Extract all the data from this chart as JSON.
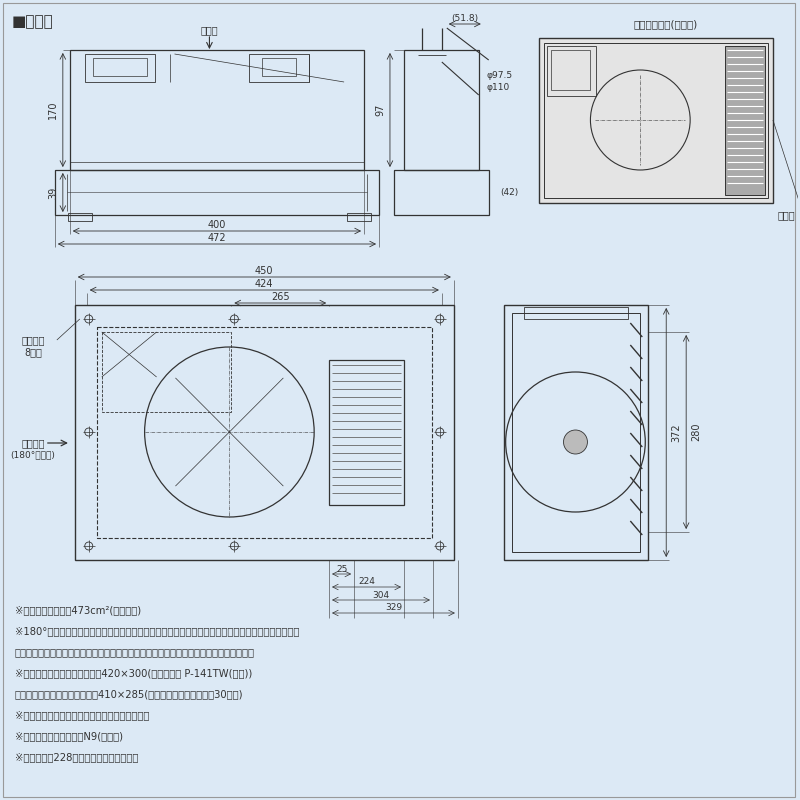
{
  "bg_color": "#dce9f5",
  "line_color": "#333333",
  "title": "■外形図",
  "notes": [
    "※グリル開口面積は473cm²(側面開口)",
    "※180°反転する場合は、吹出グリルの方向を変える必要があります。また、電源端子台位置が変わる",
    "　ため、点検口からの電源接続が困難な場合、電源接続の後に本体を据付けてください。",
    "※天井埋込寸法　天吹据付時　420×300(天吹補助枝 P-141TW(別売))",
    "　　　　　　　　野縁据付時　410×285(野縁高さは天井材を含み30以下)",
    "※本体据付けは浴室の内側から行ってください。",
    "※グリル色調はマンセルN9(近似色)",
    "※点検口等は228ページをご覧ください。"
  ]
}
